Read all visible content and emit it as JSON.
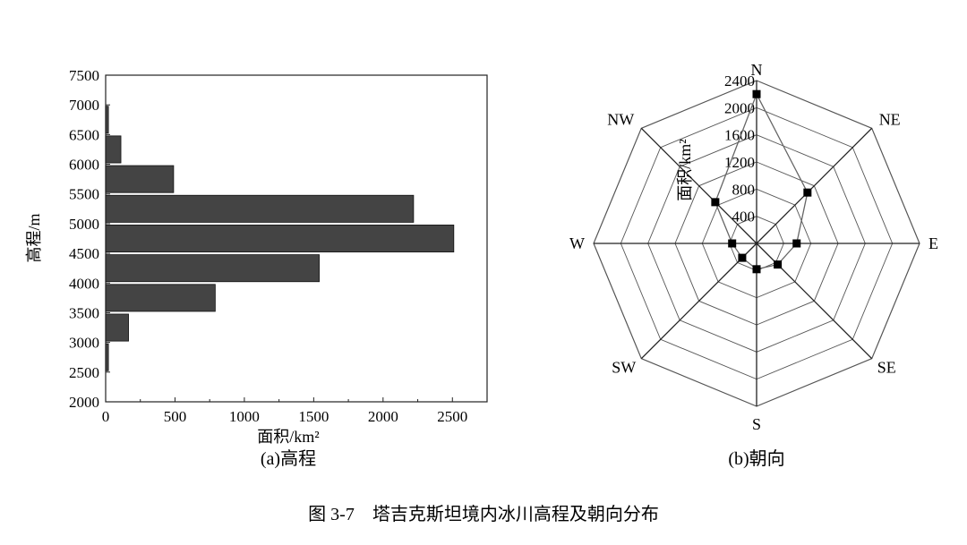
{
  "figure_caption": "图 3-7　塔吉克斯坦境内冰川高程及朝向分布",
  "chart_data": [
    {
      "type": "bar",
      "orientation": "horizontal",
      "subtitle": "(a)高程",
      "xlabel": "面积/km²",
      "ylabel": "高程/m",
      "xlim": [
        0,
        2750
      ],
      "ylim": [
        2000,
        7500
      ],
      "xticks": [
        "0",
        "500",
        "1000",
        "1500",
        "2000",
        "2500"
      ],
      "yticks": [
        "2000",
        "2500",
        "3000",
        "3500",
        "4000",
        "4500",
        "5000",
        "5500",
        "6000",
        "6500",
        "7000",
        "7500"
      ],
      "categories": [
        "2500-3000",
        "3000-3500",
        "3500-4000",
        "4000-4500",
        "4500-5000",
        "5000-5500",
        "5500-6000",
        "6000-6500",
        "6500-7000"
      ],
      "values": [
        20,
        165,
        790,
        1540,
        2510,
        2220,
        490,
        110,
        20
      ],
      "bar_color": "#444444",
      "grid": false
    },
    {
      "type": "radar",
      "subtitle": "(b)朝向",
      "radial_label": "面积/km²",
      "rmax": 2400,
      "rticks": [
        "400",
        "800",
        "1200",
        "1600",
        "2000",
        "2400"
      ],
      "directions": [
        "N",
        "NE",
        "E",
        "SE",
        "S",
        "SW",
        "W",
        "NW"
      ],
      "values": [
        2200,
        1060,
        590,
        440,
        380,
        300,
        360,
        860
      ],
      "line_color": "#666666",
      "marker_color": "#000000"
    }
  ]
}
